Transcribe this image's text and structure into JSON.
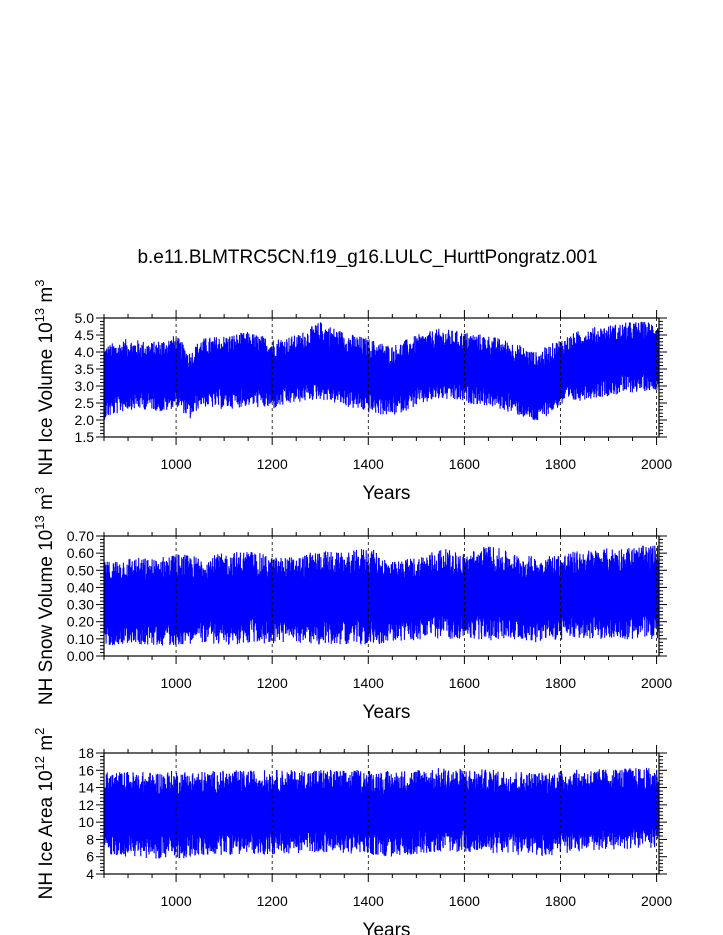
{
  "title": "b.e11.BLMTRC5CN.f19_g16.LULC_HurttPongratz.001",
  "chart_data": [
    {
      "type": "line",
      "name": "nh-ice-volume",
      "title": "",
      "xlabel": "Years",
      "ylabel_main": "NH Ice Volume 10",
      "ylabel_exp": "13",
      "ylabel_unit": " m",
      "ylabel_unit_exp": "3",
      "xlim": [
        850,
        2005
      ],
      "ylim": [
        1.5,
        5.0
      ],
      "xticks": [
        1000,
        1200,
        1400,
        1600,
        1800,
        2000
      ],
      "xtick_labels": [
        "1000",
        "1200",
        "1400",
        "1600",
        "1800",
        "2000"
      ],
      "yticks": [
        1.5,
        2.0,
        2.5,
        3.0,
        3.5,
        4.0,
        4.5,
        5.0
      ],
      "ytick_labels": [
        "1.5",
        "2.0",
        "2.5",
        "3.0",
        "3.5",
        "4.0",
        "4.5",
        "5.0"
      ],
      "series": [
        {
          "name": "NH Ice Volume",
          "color": "#0000ff",
          "envelope_years": [
            850,
            900,
            950,
            975,
            1000,
            1030,
            1050,
            1100,
            1150,
            1200,
            1250,
            1300,
            1350,
            1400,
            1450,
            1500,
            1550,
            1600,
            1650,
            1700,
            1750,
            1800,
            1850,
            1900,
            1950,
            2005
          ],
          "upper": [
            4.2,
            4.4,
            4.3,
            4.4,
            4.5,
            4.0,
            4.4,
            4.5,
            4.6,
            4.4,
            4.5,
            4.9,
            4.6,
            4.4,
            4.2,
            4.5,
            4.7,
            4.6,
            4.5,
            4.3,
            4.0,
            4.4,
            4.7,
            4.8,
            4.9,
            4.9
          ],
          "lower": [
            2.0,
            2.3,
            2.3,
            2.2,
            2.4,
            2.0,
            2.4,
            2.3,
            2.4,
            2.3,
            2.5,
            2.6,
            2.4,
            2.2,
            2.1,
            2.4,
            2.6,
            2.5,
            2.4,
            2.2,
            1.9,
            2.4,
            2.6,
            2.7,
            2.8,
            2.9
          ]
        }
      ]
    },
    {
      "type": "line",
      "name": "nh-snow-volume",
      "title": "",
      "xlabel": "Years",
      "ylabel_main": "NH Snow Volume 10",
      "ylabel_exp": "13",
      "ylabel_unit": " m",
      "ylabel_unit_exp": "3",
      "xlim": [
        850,
        2005
      ],
      "ylim": [
        0.0,
        0.7
      ],
      "xticks": [
        1000,
        1200,
        1400,
        1600,
        1800,
        2000
      ],
      "xtick_labels": [
        "1000",
        "1200",
        "1400",
        "1600",
        "1800",
        "2000"
      ],
      "yticks": [
        0.0,
        0.1,
        0.2,
        0.3,
        0.4,
        0.5,
        0.6,
        0.7
      ],
      "ytick_labels": [
        "0.00",
        "0.10",
        "0.20",
        "0.30",
        "0.40",
        "0.50",
        "0.60",
        "0.70"
      ],
      "series": [
        {
          "name": "NH Snow Volume",
          "color": "#0000ff",
          "envelope_years": [
            850,
            900,
            950,
            1000,
            1050,
            1100,
            1150,
            1200,
            1250,
            1300,
            1350,
            1400,
            1450,
            1500,
            1550,
            1600,
            1650,
            1700,
            1750,
            1800,
            1850,
            1900,
            1950,
            2005
          ],
          "upper": [
            0.55,
            0.58,
            0.57,
            0.6,
            0.58,
            0.6,
            0.62,
            0.58,
            0.58,
            0.62,
            0.6,
            0.64,
            0.55,
            0.58,
            0.63,
            0.6,
            0.65,
            0.6,
            0.58,
            0.6,
            0.62,
            0.63,
            0.64,
            0.65
          ],
          "lower": [
            0.06,
            0.07,
            0.06,
            0.06,
            0.08,
            0.06,
            0.07,
            0.07,
            0.08,
            0.06,
            0.07,
            0.06,
            0.08,
            0.09,
            0.1,
            0.1,
            0.09,
            0.1,
            0.08,
            0.09,
            0.1,
            0.1,
            0.09,
            0.1
          ]
        }
      ]
    },
    {
      "type": "line",
      "name": "nh-ice-area",
      "title": "",
      "xlabel": "Years",
      "ylabel_main": "NH Ice Area 10",
      "ylabel_exp": "12",
      "ylabel_unit": " m",
      "ylabel_unit_exp": "2",
      "xlim": [
        850,
        2005
      ],
      "ylim": [
        4,
        18
      ],
      "xticks": [
        1000,
        1200,
        1400,
        1600,
        1800,
        2000
      ],
      "xtick_labels": [
        "1000",
        "1200",
        "1400",
        "1600",
        "1800",
        "2000"
      ],
      "yticks": [
        4,
        6,
        8,
        10,
        12,
        14,
        16,
        18
      ],
      "ytick_labels": [
        "4",
        "6",
        "8",
        "10",
        "12",
        "14",
        "16",
        "18"
      ],
      "series": [
        {
          "name": "NH Ice Area",
          "color": "#0000ff",
          "envelope_years": [
            850,
            900,
            950,
            1000,
            1050,
            1100,
            1150,
            1200,
            1250,
            1300,
            1350,
            1400,
            1450,
            1500,
            1550,
            1600,
            1650,
            1700,
            1750,
            1800,
            1850,
            1900,
            1950,
            2005
          ],
          "upper": [
            15.8,
            15.9,
            15.8,
            16.0,
            15.9,
            16.0,
            16.0,
            16.1,
            16.0,
            16.2,
            16.0,
            16.1,
            15.9,
            16.2,
            16.3,
            16.2,
            16.1,
            16.0,
            15.8,
            16.0,
            16.1,
            16.2,
            16.3,
            16.3
          ],
          "lower": [
            6.2,
            6.0,
            5.8,
            5.7,
            6.0,
            6.2,
            6.3,
            6.2,
            6.4,
            6.5,
            6.4,
            6.2,
            5.9,
            6.3,
            6.6,
            6.5,
            6.4,
            6.3,
            5.9,
            6.3,
            6.6,
            6.8,
            6.9,
            7.0
          ]
        }
      ]
    }
  ]
}
